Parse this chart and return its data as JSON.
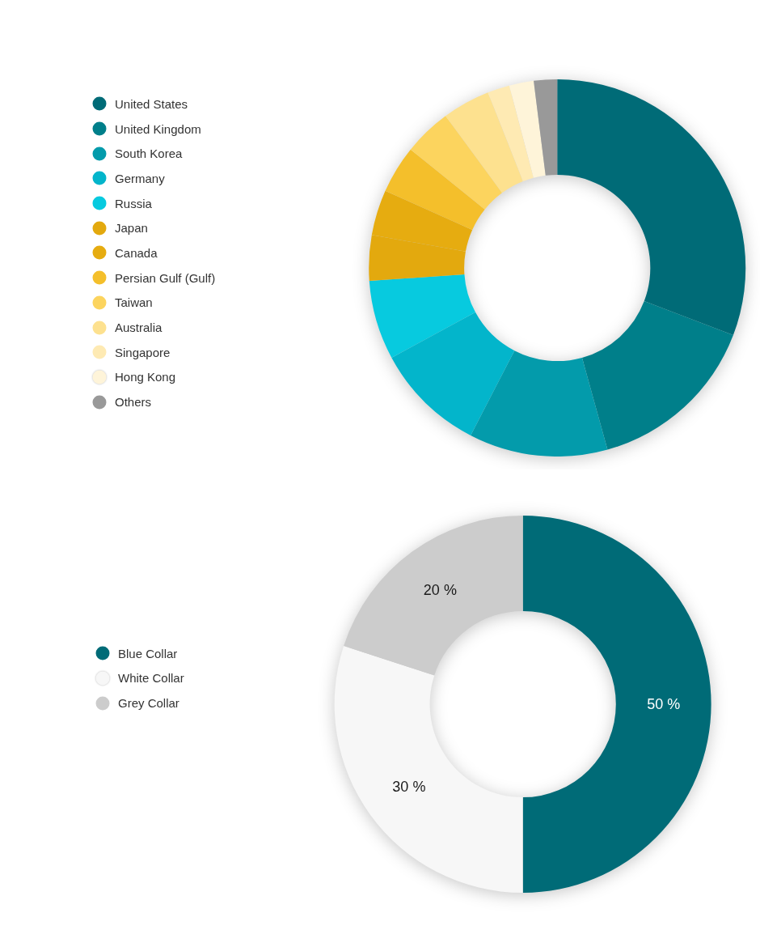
{
  "chart_data": [
    {
      "type": "donut",
      "categories": [
        "United States",
        "United Kingdom",
        "South Korea",
        "Germany",
        "Russia",
        "Japan",
        "Canada",
        "Persian Gulf (Gulf)",
        "Taiwan",
        "Australia",
        "Singapore",
        "Hong Kong",
        "Others"
      ],
      "values": [
        30.8,
        14.9,
        11.9,
        9.5,
        6.8,
        3.9,
        3.9,
        4.1,
        4.1,
        4.1,
        1.9,
        2.1,
        2.0
      ],
      "colors": [
        "#006b77",
        "#007f8a",
        "#039bab",
        "#03b5cb",
        "#07cadf",
        "#e3a90e",
        "#e6ac10",
        "#f4bf2b",
        "#fcd45e",
        "#fde18f",
        "#feeab3",
        "#fef4d9",
        "#999999"
      ],
      "legend": "top left"
    },
    {
      "type": "donut",
      "categories": [
        "Blue Collar",
        "White Collar",
        "Grey Collar"
      ],
      "values": [
        50,
        30,
        20
      ],
      "colors": [
        "#006b77",
        "#f7f7f7",
        "#cccccc"
      ],
      "value_labels": [
        "50 %",
        "30 %",
        "20 %"
      ],
      "legend": "left"
    }
  ]
}
